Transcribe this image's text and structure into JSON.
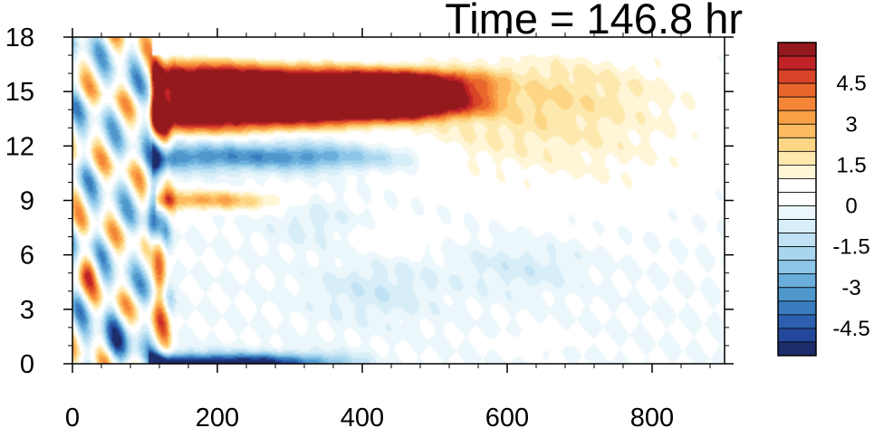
{
  "chart_data": {
    "type": "heatmap",
    "title": "Time = 146.8 hr",
    "xlabel": "",
    "ylabel": "",
    "xlim": [
      0,
      920
    ],
    "ylim": [
      0,
      18
    ],
    "x_ticks": [
      "0",
      "200",
      "400",
      "600",
      "800"
    ],
    "y_ticks": [
      "0",
      "3",
      "6",
      "9",
      "12",
      "15",
      "18"
    ],
    "colorbar": {
      "labels": [
        "4.5",
        "3",
        "1.5",
        "0",
        "-1.5",
        "-3",
        "-4.5"
      ],
      "levels": [
        -5.5,
        -5,
        -4.5,
        -4,
        -3.5,
        -3,
        -2.5,
        -2,
        -1.5,
        -1,
        -0.5,
        0,
        0.5,
        1,
        1.5,
        2,
        2.5,
        3,
        3.5,
        4,
        4.5,
        5,
        5.5
      ],
      "colors": [
        "#1d2d6a",
        "#23479a",
        "#2c5fad",
        "#3a7cbf",
        "#4f98cd",
        "#6aaedb",
        "#8cc6e8",
        "#a8d6ef",
        "#c0e2f4",
        "#d7eef8",
        "#ecf7fc",
        "#ffffff",
        "#ffffff",
        "#fff6d8",
        "#fde9ae",
        "#fdd685",
        "#fdbb61",
        "#f9a046",
        "#f48637",
        "#e9662c",
        "#d84428",
        "#c02226",
        "#94191d"
      ]
    },
    "features": [
      {
        "name": "upper-positive-band",
        "x": [
          110,
          590
        ],
        "y": [
          12.7,
          16.7
        ],
        "peak": 6.0
      },
      {
        "name": "upper-negative-band",
        "x": [
          130,
          520
        ],
        "y": [
          10.6,
          12.4
        ],
        "peak": -3.2
      },
      {
        "name": "mid-positive-band",
        "x": [
          120,
          330
        ],
        "y": [
          8.3,
          9.6
        ],
        "peak": 2.8
      },
      {
        "name": "bottom-negative-band",
        "x": [
          110,
          420
        ],
        "y": [
          0,
          1.2
        ],
        "peak": -5.5
      },
      {
        "name": "outer-positive-patch",
        "x": [
          400,
          900
        ],
        "y": [
          11,
          17
        ],
        "peak": 1.2
      }
    ]
  }
}
